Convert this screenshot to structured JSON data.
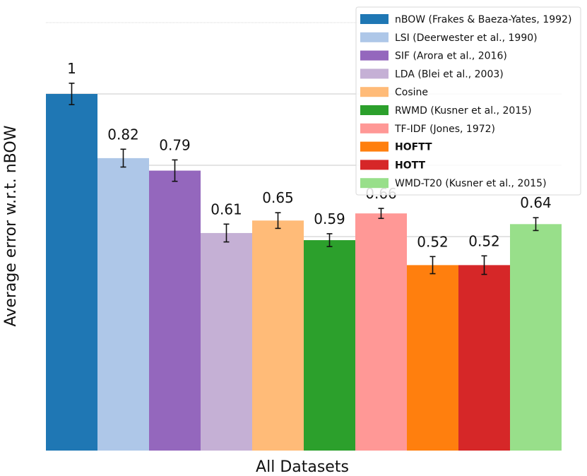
{
  "chart_data": {
    "type": "bar",
    "xlabel": "All Datasets",
    "ylabel": "Average error w.r.t. nBOW",
    "ylim": [
      0,
      1.2
    ],
    "grid": true,
    "legend_position": "top-right",
    "series": [
      {
        "name": "nBOW (Frakes & Baeza-Yates, 1992)",
        "value": 1.0,
        "label": "1",
        "err": 0.03,
        "color": "#1f77b4",
        "bold": false
      },
      {
        "name": "LSI (Deerwester et al., 1990)",
        "value": 0.82,
        "label": "0.82",
        "err": 0.025,
        "color": "#aec7e8",
        "bold": false
      },
      {
        "name": "SIF (Arora et al., 2016)",
        "value": 0.785,
        "label": "0.79",
        "err": 0.03,
        "color": "#9467bd",
        "bold": false
      },
      {
        "name": "LDA (Blei et al., 2003)",
        "value": 0.61,
        "label": "0.61",
        "err": 0.025,
        "color": "#c5b0d5",
        "bold": false
      },
      {
        "name": "Cosine",
        "value": 0.645,
        "label": "0.65",
        "err": 0.022,
        "color": "#ffbb78",
        "bold": false
      },
      {
        "name": "RWMD (Kusner et al., 2015)",
        "value": 0.59,
        "label": "0.59",
        "err": 0.018,
        "color": "#2ca02c",
        "bold": false
      },
      {
        "name": "TF-IDF (Jones, 1972)",
        "value": 0.665,
        "label": "0.66",
        "err": 0.014,
        "color": "#ff9896",
        "bold": false
      },
      {
        "name": "HOFTT",
        "value": 0.52,
        "label": "0.52",
        "err": 0.024,
        "color": "#ff7f0e",
        "bold": true
      },
      {
        "name": "HOTT",
        "value": 0.52,
        "label": "0.52",
        "err": 0.026,
        "color": "#d62728",
        "bold": true
      },
      {
        "name": "WMD-T20 (Kusner et al., 2015)",
        "value": 0.635,
        "label": "0.64",
        "err": 0.018,
        "color": "#98df8a",
        "bold": false
      }
    ]
  }
}
